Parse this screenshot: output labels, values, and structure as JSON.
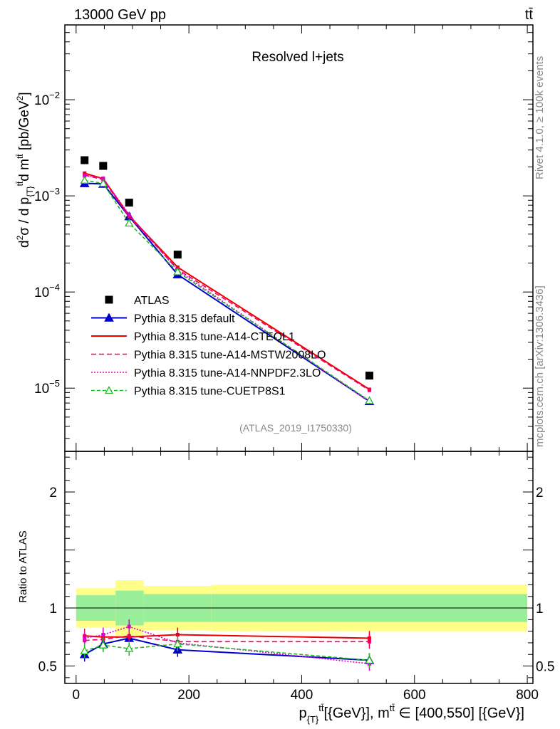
{
  "header": {
    "left": "13000 GeV pp",
    "right": "tt̄"
  },
  "side": {
    "rivet": "Rivet 4.1.0, ≥ 100k events",
    "mcplots": "mcplots.cern.ch [arXiv:1306.3436]"
  },
  "chart_data": {
    "type": "line",
    "title": "Resolved l+jets",
    "analysis_id": "(ATLAS_2019_I1750330)",
    "xlabel": "p_{T}^{t̄t}[{GeV}], m^{tt̄} ∈ [400,550] [{GeV}]",
    "ylabel": "d²σ / d p_{T}^{tt̄} d m^{tt̄} [pb/GeV²]",
    "ratio_ylabel": "Ratio to ATLAS",
    "xlim": [
      -20,
      810
    ],
    "ylim": [
      2.2e-06,
      0.06
    ],
    "ratio_ylim": [
      0.35,
      2.35
    ],
    "xticks": [
      0,
      200,
      400,
      600,
      800
    ],
    "yticks": [
      {
        "value": 1e-05,
        "mant": "10",
        "exp": "−5"
      },
      {
        "value": 0.0001,
        "mant": "10",
        "exp": "−4"
      },
      {
        "value": 0.001,
        "mant": "10",
        "exp": "−3"
      },
      {
        "value": 0.01,
        "mant": "10",
        "exp": "−2"
      }
    ],
    "ratio_yticks": [
      0.5,
      1,
      2
    ],
    "x": [
      15,
      48,
      94,
      180,
      520
    ],
    "bin_edges": [
      0,
      30,
      70,
      120,
      240,
      800
    ],
    "data": {
      "name": "ATLAS",
      "values": [
        0.00235,
        0.00205,
        0.00085,
        0.000245,
        1.35e-05
      ],
      "band_stat": [
        0.11,
        0.11,
        0.15,
        0.12,
        0.12
      ],
      "band_total": [
        0.17,
        0.17,
        0.24,
        0.19,
        0.2
      ]
    },
    "series": [
      {
        "name": "Pythia 8.315 default",
        "color": "#0000cc",
        "dash": "",
        "marker": "triangle",
        "values": [
          0.00135,
          0.00133,
          0.00061,
          0.000152,
          7.3e-06
        ],
        "ratio": [
          0.6,
          0.69,
          0.74,
          0.64,
          0.55
        ]
      },
      {
        "name": "Pythia 8.315 tune-A14-CTEQL1",
        "color": "#ee0000",
        "dash": "",
        "marker": "none",
        "values": [
          0.00172,
          0.00151,
          0.00062,
          0.000181,
          9.7e-06
        ],
        "ratio": [
          0.76,
          0.75,
          0.75,
          0.77,
          0.74
        ]
      },
      {
        "name": "Pythia 8.315 tune-A14-MSTW2008LO",
        "color": "#ee0066",
        "dash": "7,4",
        "marker": "none",
        "values": [
          0.00165,
          0.00147,
          0.00061,
          0.000172,
          9.5e-06
        ],
        "ratio": [
          0.72,
          0.73,
          0.76,
          0.71,
          0.71
        ]
      },
      {
        "name": "Pythia 8.315 tune-A14-NNPDF2.3LO",
        "color": "#dd00cc",
        "dash": "2,2",
        "marker": "none",
        "values": [
          0.00162,
          0.00152,
          0.00064,
          0.000168,
          7.2e-06
        ],
        "ratio": [
          0.74,
          0.77,
          0.84,
          0.7,
          0.52
        ]
      },
      {
        "name": "Pythia 8.315 tune-CUETP8S1",
        "color": "#22bb22",
        "dash": "5,3",
        "marker": "open-triangle",
        "values": [
          0.00145,
          0.00135,
          0.00052,
          0.000162,
          7.4e-06
        ],
        "ratio": [
          0.63,
          0.68,
          0.65,
          0.69,
          0.55
        ]
      }
    ]
  }
}
